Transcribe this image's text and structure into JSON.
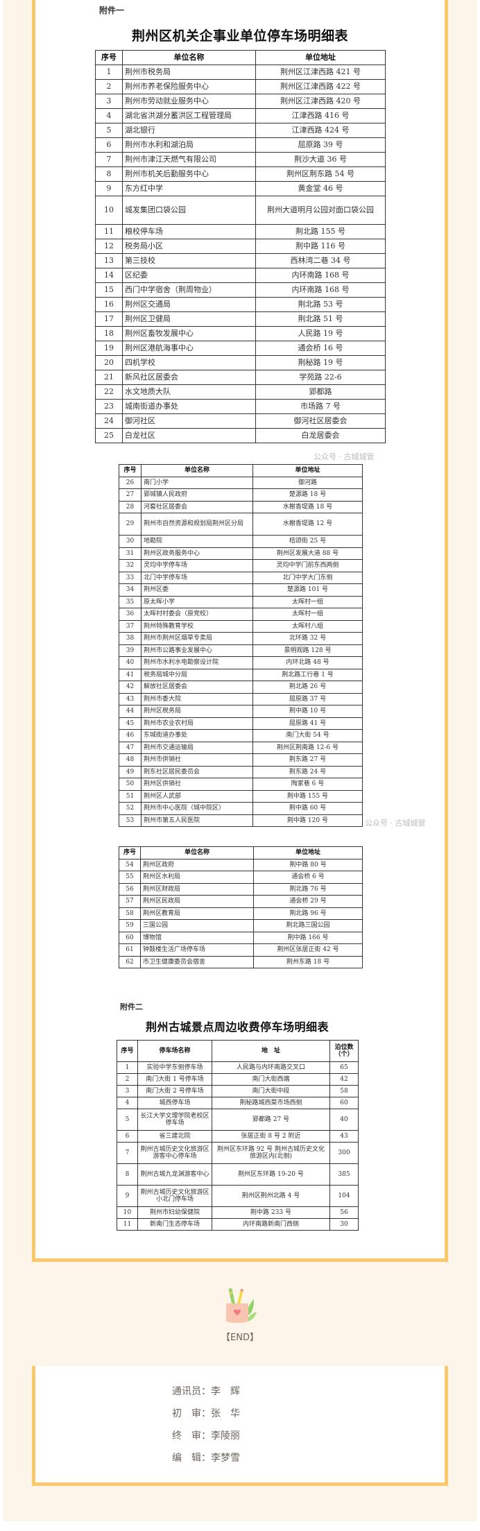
{
  "annex1": {
    "label": "附件一",
    "title": "荆州区机关企事业单位停车场明细表",
    "headers": [
      "序号",
      "单位名称",
      "单位地址"
    ],
    "rows": [
      [
        "1",
        "荆州市税务局",
        "荆州区江津西路 421 号"
      ],
      [
        "2",
        "荆州市养老保险服务中心",
        "荆州区江津西路 422 号"
      ],
      [
        "3",
        "荆州市劳动就业服务中心",
        "荆州区江津西路 420 号"
      ],
      [
        "4",
        "湖北省洪湖分蓄洪区工程管理局",
        "江津西路 416 号"
      ],
      [
        "5",
        "湖北银行",
        "江津西路 424 号"
      ],
      [
        "6",
        "荆州市水利和湖泊局",
        "屈原路 39 号"
      ],
      [
        "7",
        "荆州市津江天燃气有限公司",
        "荆沙大道 36 号"
      ],
      [
        "8",
        "荆州市机关后勤服务中心",
        "荆州区荆东路 54 号"
      ],
      [
        "9",
        "东方红中学",
        "黄金堂 46 号"
      ],
      [
        "10",
        "城发集团口袋公园",
        "荆州大道明月公园对面口袋公园"
      ],
      [
        "11",
        "粮校停车场",
        "荆北路 155 号"
      ],
      [
        "12",
        "税务局小区",
        "荆中路 116 号"
      ],
      [
        "13",
        "第三技校",
        "西林湾二巷 34 号"
      ],
      [
        "14",
        "区纪委",
        "内环南路 168 号"
      ],
      [
        "15",
        "西门中学宿舍（荆周物业）",
        "内环南路 168 号"
      ],
      [
        "16",
        "荆州区交通局",
        "荆北路 53 号"
      ],
      [
        "17",
        "荆州区卫健局",
        "荆北路 51 号"
      ],
      [
        "18",
        "荆州区畜牧发展中心",
        "人民路 19 号"
      ],
      [
        "19",
        "荆州区港航海事中心",
        "通会桥 16 号"
      ],
      [
        "20",
        "四机学校",
        "荆秘路 19 号"
      ],
      [
        "21",
        "新风社区居委会",
        "学苑路 22-6"
      ],
      [
        "22",
        "水文地质大队",
        "郢都路"
      ],
      [
        "23",
        "城南街道办事处",
        "市场路 7 号"
      ],
      [
        "24",
        "御河社区",
        "御河社区居委会"
      ],
      [
        "25",
        "白龙社区",
        "白龙居委会"
      ]
    ],
    "headers_b": [
      "序号",
      "单位名称",
      "单位地址"
    ],
    "rows_b": [
      [
        "26",
        "南门小学",
        "御河路"
      ],
      [
        "27",
        "郢城镇人民政府",
        "楚源路 18 号"
      ],
      [
        "28",
        "河套社区居委会",
        "水榭香堤路 18 号"
      ],
      [
        "29",
        "荆州市自然资源和规划局荆州区分局",
        "水榭香堤路 12 号"
      ],
      [
        "30",
        "地勘院",
        "桔颂街 25 号"
      ],
      [
        "31",
        "荆州区政务服务中心",
        "荆州区发展大道 88 号"
      ],
      [
        "32",
        "灵均中学停车场",
        "灵均中学门前东西两侧"
      ],
      [
        "33",
        "北门中学停车场",
        "北门中学大门东侧"
      ],
      [
        "34",
        "荆州区委",
        "楚源路 101 号"
      ],
      [
        "35",
        "原太晖小学",
        "太晖村一组"
      ],
      [
        "36",
        "太晖村村委会（原党校）",
        "太晖村一组"
      ],
      [
        "37",
        "荆州特殊教育学校",
        "太晖村八组"
      ],
      [
        "38",
        "荆州市荆州区烟草专卖局",
        "北环路 32 号"
      ],
      [
        "39",
        "荆州市公路事业发展中心",
        "景明观路 128 号"
      ],
      [
        "40",
        "荆州市水利水电勘察设计院",
        "内环北路 48 号"
      ],
      [
        "41",
        "税务局城中分局",
        "荆北路工行巷 1 号"
      ],
      [
        "42",
        "解放社区居委会",
        "荆北路 26 号"
      ],
      [
        "43",
        "荆州市委大院",
        "屈原路 37 号"
      ],
      [
        "44",
        "荆州区税务局",
        "荆中路 10 号"
      ],
      [
        "45",
        "荆州市农业农村局",
        "屈原路 41 号"
      ],
      [
        "46",
        "东城街道办事处",
        "南门大街 54 号"
      ],
      [
        "47",
        "荆州市交通运输局",
        "荆州区荆南路 12-6 号"
      ],
      [
        "48",
        "荆州市供销社",
        "荆东路 27 号"
      ],
      [
        "49",
        "荆东社区居民委员会",
        "荆东路 24 号"
      ],
      [
        "50",
        "荆州区供销社",
        "陶家巷 6 号"
      ],
      [
        "51",
        "荆州区人武部",
        "荆中路 155 号"
      ],
      [
        "52",
        "荆州市中心医院（城中院区）",
        "荆中路 60 号"
      ],
      [
        "53",
        "荆州市第五人民医院",
        "荆中路 120 号"
      ]
    ],
    "headers_c": [
      "序号",
      "单位名称",
      "单位地址"
    ],
    "rows_c": [
      [
        "54",
        "荆州区政府",
        "荆中路 80 号"
      ],
      [
        "55",
        "荆州区水利局",
        "通会桥 6 号"
      ],
      [
        "56",
        "荆州区财政局",
        "荆北路 76 号"
      ],
      [
        "57",
        "荆州区民政局",
        "通会桥 29 号"
      ],
      [
        "58",
        "荆州区教育局",
        "荆北路 96 号"
      ],
      [
        "59",
        "三国公园",
        "荆北路三国公园"
      ],
      [
        "60",
        "博物馆",
        "荆中路 166 号"
      ],
      [
        "61",
        "钟鼓楼生活广场停车场",
        "荆州区张居正街 42 号"
      ],
      [
        "62",
        "市卫生健康委员会宿舍",
        "荆州东路 18 号"
      ]
    ]
  },
  "annex2": {
    "label": "附件二",
    "title": "荆州古城景点周边收费停车场明细表",
    "headers": [
      "序号",
      "停车场名称",
      "地　址",
      "泊位数（个）"
    ],
    "rows": [
      [
        "1",
        "实验中学东侧停车场",
        "人民路与内环南路交叉口",
        "65"
      ],
      [
        "2",
        "南门大街 1 号停车场",
        "南门大街西端",
        "42"
      ],
      [
        "3",
        "南门大街 2 号停车场",
        "南门大街中段",
        "58"
      ],
      [
        "4",
        "城西停车场",
        "荆秘路城西菜市场西侧",
        "60"
      ],
      [
        "5",
        "长江大学文理学院老校区停车场",
        "郢都路 27 号",
        "40"
      ],
      [
        "6",
        "省三建北院",
        "张居正街 8 号 2 附近",
        "43"
      ],
      [
        "7",
        "荆州古城历史文化旅游区游客中心停车场",
        "荆州区东环路 92 号 荆州古城历史文化旅游区内(北侧)",
        "300"
      ],
      [
        "8",
        "荆州古城九龙渊游客中心",
        "荆州区东环路 19-20 号",
        "385"
      ],
      [
        "9",
        "荆州古城历史文化旅游区小北门停车场",
        "荆州区荆州北路 4 号",
        "104"
      ],
      [
        "10",
        "荆州市妇幼保健院",
        "荆中路 233 号",
        "56"
      ],
      [
        "11",
        "新南门生态停车场",
        "内环南路新南门西侧",
        "30"
      ]
    ]
  },
  "watermark": "公众号 · 古城城管",
  "end_label": "【END】",
  "credits": [
    "通讯员：李　辉",
    "初　审：张　华",
    "终　审：李陵丽",
    "编　辑：李梦雪"
  ],
  "colors": {
    "border_accent": "#fcc86c",
    "background": "#fdf5ea"
  }
}
